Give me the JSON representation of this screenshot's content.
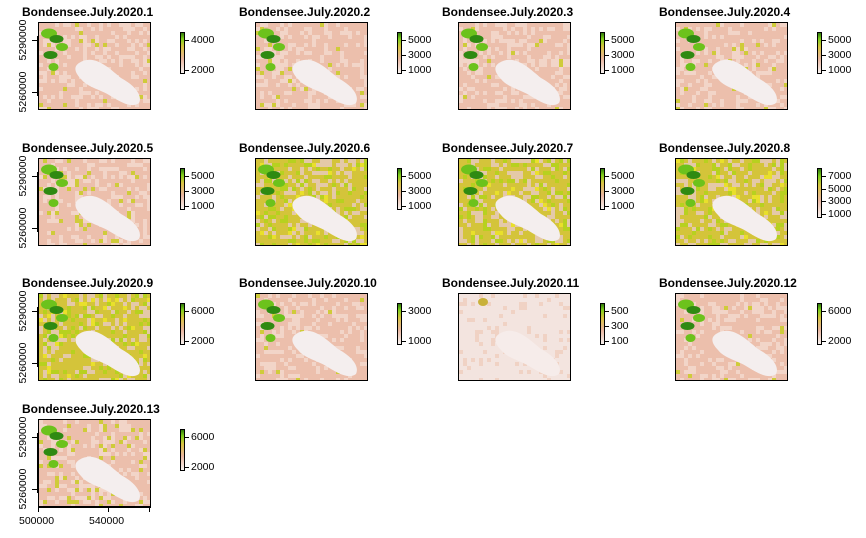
{
  "chart_data": {
    "type": "heatmap",
    "colors": {
      "low": "#f2f2f2",
      "mid_low": "#eab69f",
      "mid": "#d9c441",
      "high": "#7fd01a",
      "very_high": "#2f7a0c"
    },
    "y_axis_ticks": [
      "5260000",
      "5290000"
    ],
    "x_axis_ticks": [
      "500000",
      "540000"
    ],
    "panels": [
      {
        "title": "Bondensee.July.2020.1",
        "legend_ticks": [
          "4000",
          "2000"
        ],
        "greening": 0.05
      },
      {
        "title": "Bondensee.July.2020.2",
        "legend_ticks": [
          "5000",
          "3000",
          "1000"
        ],
        "greening": 0.05
      },
      {
        "title": "Bondensee.July.2020.3",
        "legend_ticks": [
          "5000",
          "3000",
          "1000"
        ],
        "greening": 0.05
      },
      {
        "title": "Bondensee.July.2020.4",
        "legend_ticks": [
          "5000",
          "3000",
          "1000"
        ],
        "greening": 0.05
      },
      {
        "title": "Bondensee.July.2020.5",
        "legend_ticks": [
          "5000",
          "3000",
          "1000"
        ],
        "greening": 0.12
      },
      {
        "title": "Bondensee.July.2020.6",
        "legend_ticks": [
          "5000",
          "3000",
          "1000"
        ],
        "greening": 0.75
      },
      {
        "title": "Bondensee.July.2020.7",
        "legend_ticks": [
          "5000",
          "3000",
          "1000"
        ],
        "greening": 0.9
      },
      {
        "title": "Bondensee.July.2020.8",
        "legend_ticks": [
          "7000",
          "5000",
          "3000",
          "1000"
        ],
        "greening": 0.7
      },
      {
        "title": "Bondensee.July.2020.9",
        "legend_ticks": [
          "6000",
          "2000"
        ],
        "greening": 0.6
      },
      {
        "title": "Bondensee.July.2020.10",
        "legend_ticks": [
          "3000",
          "1000"
        ],
        "greening": 0.03
      },
      {
        "title": "Bondensee.July.2020.11",
        "legend_ticks": [
          "500",
          "300",
          "100"
        ],
        "greening": 0.0
      },
      {
        "title": "Bondensee.July.2020.12",
        "legend_ticks": [
          "6000",
          "2000"
        ],
        "greening": 0.03
      },
      {
        "title": "Bondensee.July.2020.13",
        "legend_ticks": [
          "6000",
          "2000"
        ],
        "greening": 0.2
      }
    ]
  }
}
